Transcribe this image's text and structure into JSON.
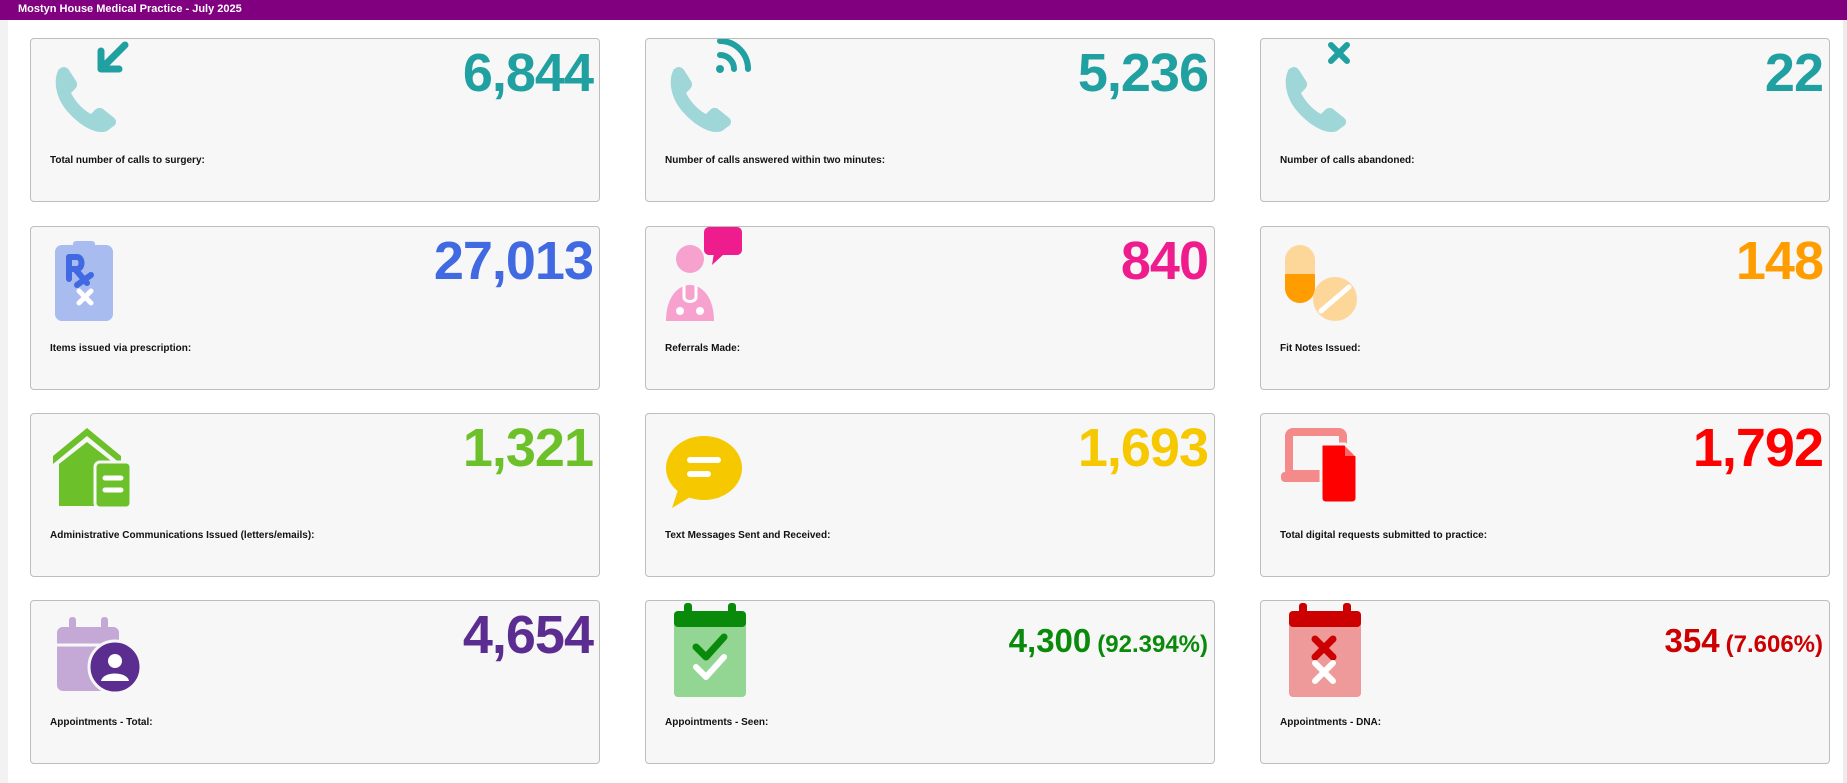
{
  "header": {
    "title": "Mostyn House Medical Practice - July 2025"
  },
  "colors": {
    "header_bg": "#800080",
    "teal": "#20a0a0",
    "blue": "#4169e1",
    "pink": "#ee1c8c",
    "orange": "#ff9d00",
    "green": "#6cc02a",
    "yellow": "#f5c800",
    "red": "#ff0000",
    "purple": "#5c2d91",
    "dark_green": "#0a8a0a",
    "dark_red": "#cc0000"
  },
  "cards": [
    {
      "value": "6,844",
      "label": "Total number of calls to surgery:",
      "icon": "phone-incoming-icon"
    },
    {
      "value": "5,236",
      "label": "Number of calls answered within two minutes:",
      "icon": "phone-signal-icon"
    },
    {
      "value": "22",
      "label": "Number of calls abandoned:",
      "icon": "phone-cancel-icon"
    },
    {
      "value": "27,013",
      "label": "Items issued via prescription:",
      "icon": "prescription-icon"
    },
    {
      "value": "840",
      "label": "Referrals Made:",
      "icon": "doctor-chat-icon"
    },
    {
      "value": "148",
      "label": "Fit Notes Issued:",
      "icon": "pills-icon"
    },
    {
      "value": "1,321",
      "label": "Administrative Communications Issued (letters/emails):",
      "icon": "home-letter-icon"
    },
    {
      "value": "1,693",
      "label": "Text Messages Sent and Received:",
      "icon": "chat-bubble-icon"
    },
    {
      "value": "1,792",
      "label": "Total digital requests submitted to practice:",
      "icon": "laptop-document-icon"
    },
    {
      "value": "4,654",
      "label": "Appointments - Total:",
      "icon": "calendar-user-icon"
    },
    {
      "value": "4,300",
      "pct": "(92.394%)",
      "label": "Appointments - Seen:",
      "icon": "calendar-check-icon"
    },
    {
      "value": "354",
      "pct": "(7.606%)",
      "label": "Appointments - DNA:",
      "icon": "calendar-cross-icon"
    }
  ]
}
